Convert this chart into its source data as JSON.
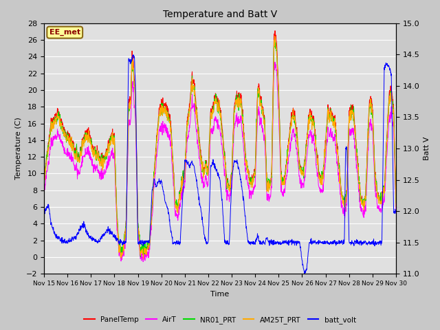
{
  "title": "Temperature and Batt V",
  "xlabel": "Time",
  "ylabel_left": "Temperature (C)",
  "ylabel_right": "Batt V",
  "xlim": [
    0,
    15
  ],
  "ylim_left": [
    -2,
    28
  ],
  "ylim_right": [
    11.0,
    15.0
  ],
  "yticks_left": [
    -2,
    0,
    2,
    4,
    6,
    8,
    10,
    12,
    14,
    16,
    18,
    20,
    22,
    24,
    26,
    28
  ],
  "yticks_right": [
    11.0,
    11.5,
    12.0,
    12.5,
    13.0,
    13.5,
    14.0,
    14.5,
    15.0
  ],
  "xtick_labels": [
    "Nov 15",
    "Nov 16",
    "Nov 17",
    "Nov 18",
    "Nov 19",
    "Nov 20",
    "Nov 21",
    "Nov 22",
    "Nov 23",
    "Nov 24",
    "Nov 25",
    "Nov 26",
    "Nov 27",
    "Nov 28",
    "Nov 29",
    "Nov 30"
  ],
  "annotation_text": "EE_met",
  "annotation_box_color": "#ffff99",
  "annotation_text_color": "#8b0000",
  "annotation_border_color": "#8b6914",
  "series_colors": {
    "PanelTemp": "#ff0000",
    "AirT": "#ff00ff",
    "NR01_PRT": "#00dd00",
    "AM25T_PRT": "#ffaa00",
    "batt_volt": "#0000ff"
  },
  "fig_bg_color": "#c8c8c8",
  "plot_bg_color": "#e0e0e0",
  "grid_color": "#ffffff",
  "figsize": [
    6.4,
    4.8
  ],
  "dpi": 100
}
